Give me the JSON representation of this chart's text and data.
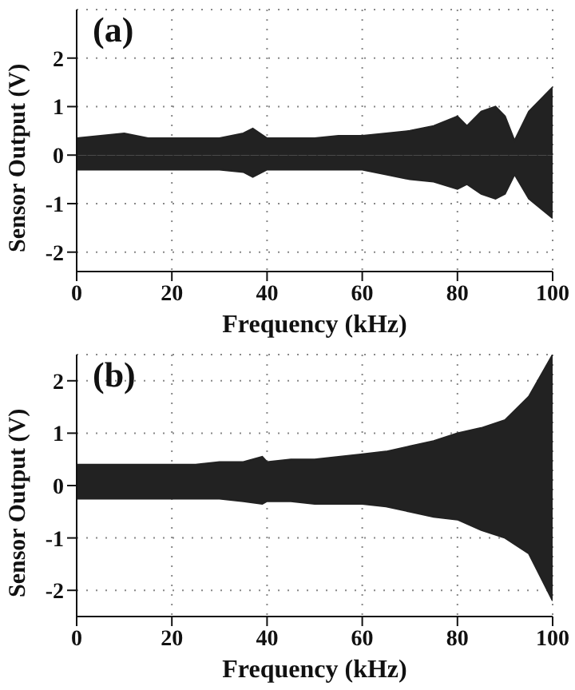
{
  "chart_data": [
    {
      "type": "area",
      "title": "(a)",
      "xlabel": "Frequency (kHz)",
      "ylabel": "Sensor Output (V)",
      "x": [
        0,
        5,
        10,
        15,
        20,
        25,
        30,
        35,
        37,
        40,
        45,
        50,
        55,
        60,
        65,
        70,
        75,
        80,
        82,
        85,
        88,
        90,
        92,
        95,
        100
      ],
      "series": [
        {
          "color": "#222222",
          "values": [
            0.35,
            0.4,
            0.45,
            0.35,
            0.35,
            0.35,
            0.35,
            0.45,
            0.55,
            0.35,
            0.35,
            0.35,
            0.4,
            0.4,
            0.45,
            0.5,
            0.6,
            0.8,
            0.6,
            0.9,
            1.0,
            0.8,
            0.3,
            0.9,
            1.4
          ]
        },
        {
          "color": "#222222",
          "values": [
            -0.3,
            -0.3,
            -0.3,
            -0.3,
            -0.3,
            -0.3,
            -0.3,
            -0.35,
            -0.45,
            -0.3,
            -0.3,
            -0.3,
            -0.3,
            -0.3,
            -0.4,
            -0.5,
            -0.55,
            -0.7,
            -0.6,
            -0.8,
            -0.9,
            -0.8,
            -0.4,
            -0.9,
            -1.3
          ]
        }
      ],
      "xlim": [
        0,
        100
      ],
      "xticks": [
        0,
        20,
        40,
        60,
        80,
        100
      ],
      "ylim": [
        -2.4,
        3
      ],
      "yticks": [
        -2,
        -1,
        0,
        1,
        2
      ],
      "grid": true
    },
    {
      "type": "area",
      "title": "(b)",
      "xlabel": "Frequency (kHz)",
      "ylabel": "Sensor Output (V)",
      "x": [
        0,
        5,
        10,
        15,
        20,
        25,
        30,
        35,
        39,
        40,
        45,
        50,
        55,
        60,
        65,
        70,
        75,
        80,
        85,
        90,
        95,
        100
      ],
      "series": [
        {
          "color": "#222222",
          "values": [
            0.4,
            0.4,
            0.4,
            0.4,
            0.4,
            0.4,
            0.45,
            0.45,
            0.55,
            0.45,
            0.5,
            0.5,
            0.55,
            0.6,
            0.65,
            0.75,
            0.85,
            1.0,
            1.1,
            1.25,
            1.7,
            2.5
          ]
        },
        {
          "color": "#222222",
          "values": [
            -0.25,
            -0.25,
            -0.25,
            -0.25,
            -0.25,
            -0.25,
            -0.25,
            -0.3,
            -0.35,
            -0.3,
            -0.3,
            -0.35,
            -0.35,
            -0.35,
            -0.4,
            -0.5,
            -0.6,
            -0.65,
            -0.85,
            -1.0,
            -1.3,
            -2.2
          ]
        }
      ],
      "xlim": [
        0,
        100
      ],
      "xticks": [
        0,
        20,
        40,
        60,
        80,
        100
      ],
      "ylim": [
        -2.5,
        2.5
      ],
      "yticks": [
        -2,
        -1,
        0,
        1,
        2
      ],
      "grid": true
    }
  ]
}
